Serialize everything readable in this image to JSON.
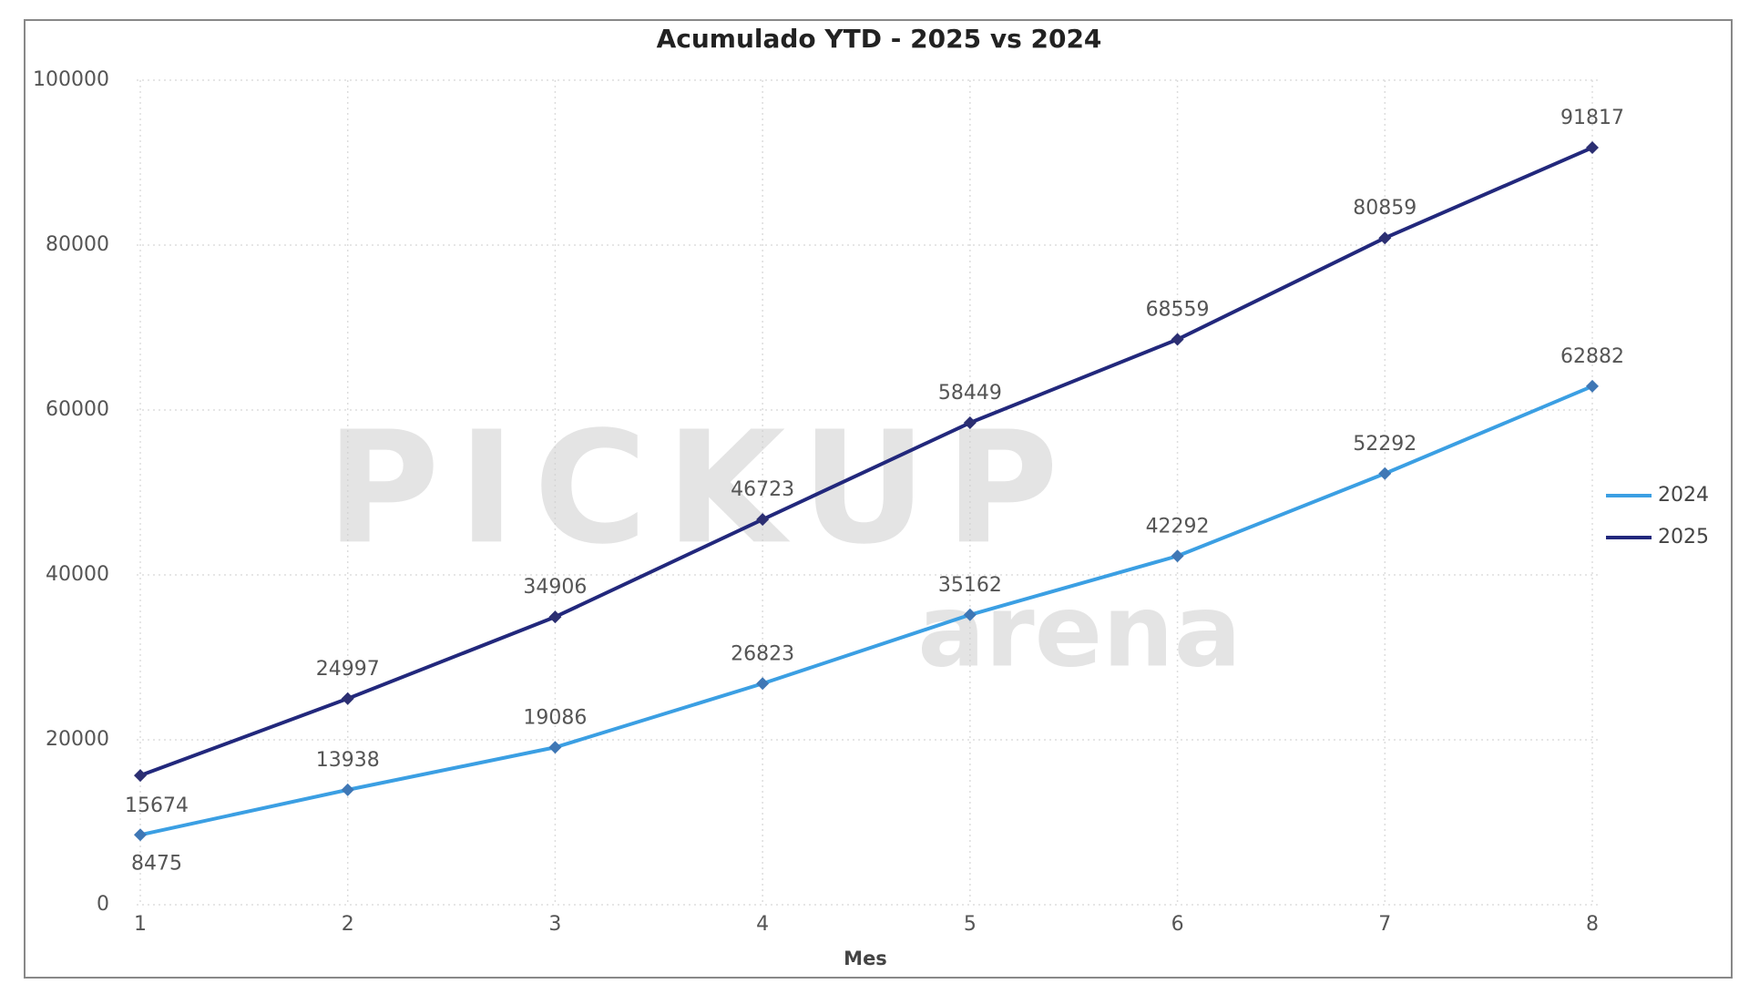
{
  "chart_data": {
    "type": "line",
    "title": "Acumulado YTD - 2025 vs 2024",
    "x_label": "Mes",
    "x": [
      1,
      2,
      3,
      4,
      5,
      6,
      7,
      8
    ],
    "xlim": [
      1,
      8
    ],
    "xticks": [
      1,
      2,
      3,
      4,
      5,
      6,
      7,
      8
    ],
    "ylim": [
      0,
      100000
    ],
    "yticks": [
      0,
      20000,
      40000,
      60000,
      80000,
      100000
    ],
    "grid": true,
    "legend": "right",
    "series": [
      {
        "name": "2024",
        "color": "#3b9fe3",
        "values": [
          8475,
          13938,
          19086,
          26823,
          35162,
          42292,
          52292,
          62882
        ]
      },
      {
        "name": "2025",
        "color": "#22287c",
        "values": [
          15674,
          24997,
          34906,
          46723,
          58449,
          68559,
          80859,
          91817
        ]
      }
    ],
    "watermark": [
      "PICKUP",
      "arena"
    ]
  }
}
